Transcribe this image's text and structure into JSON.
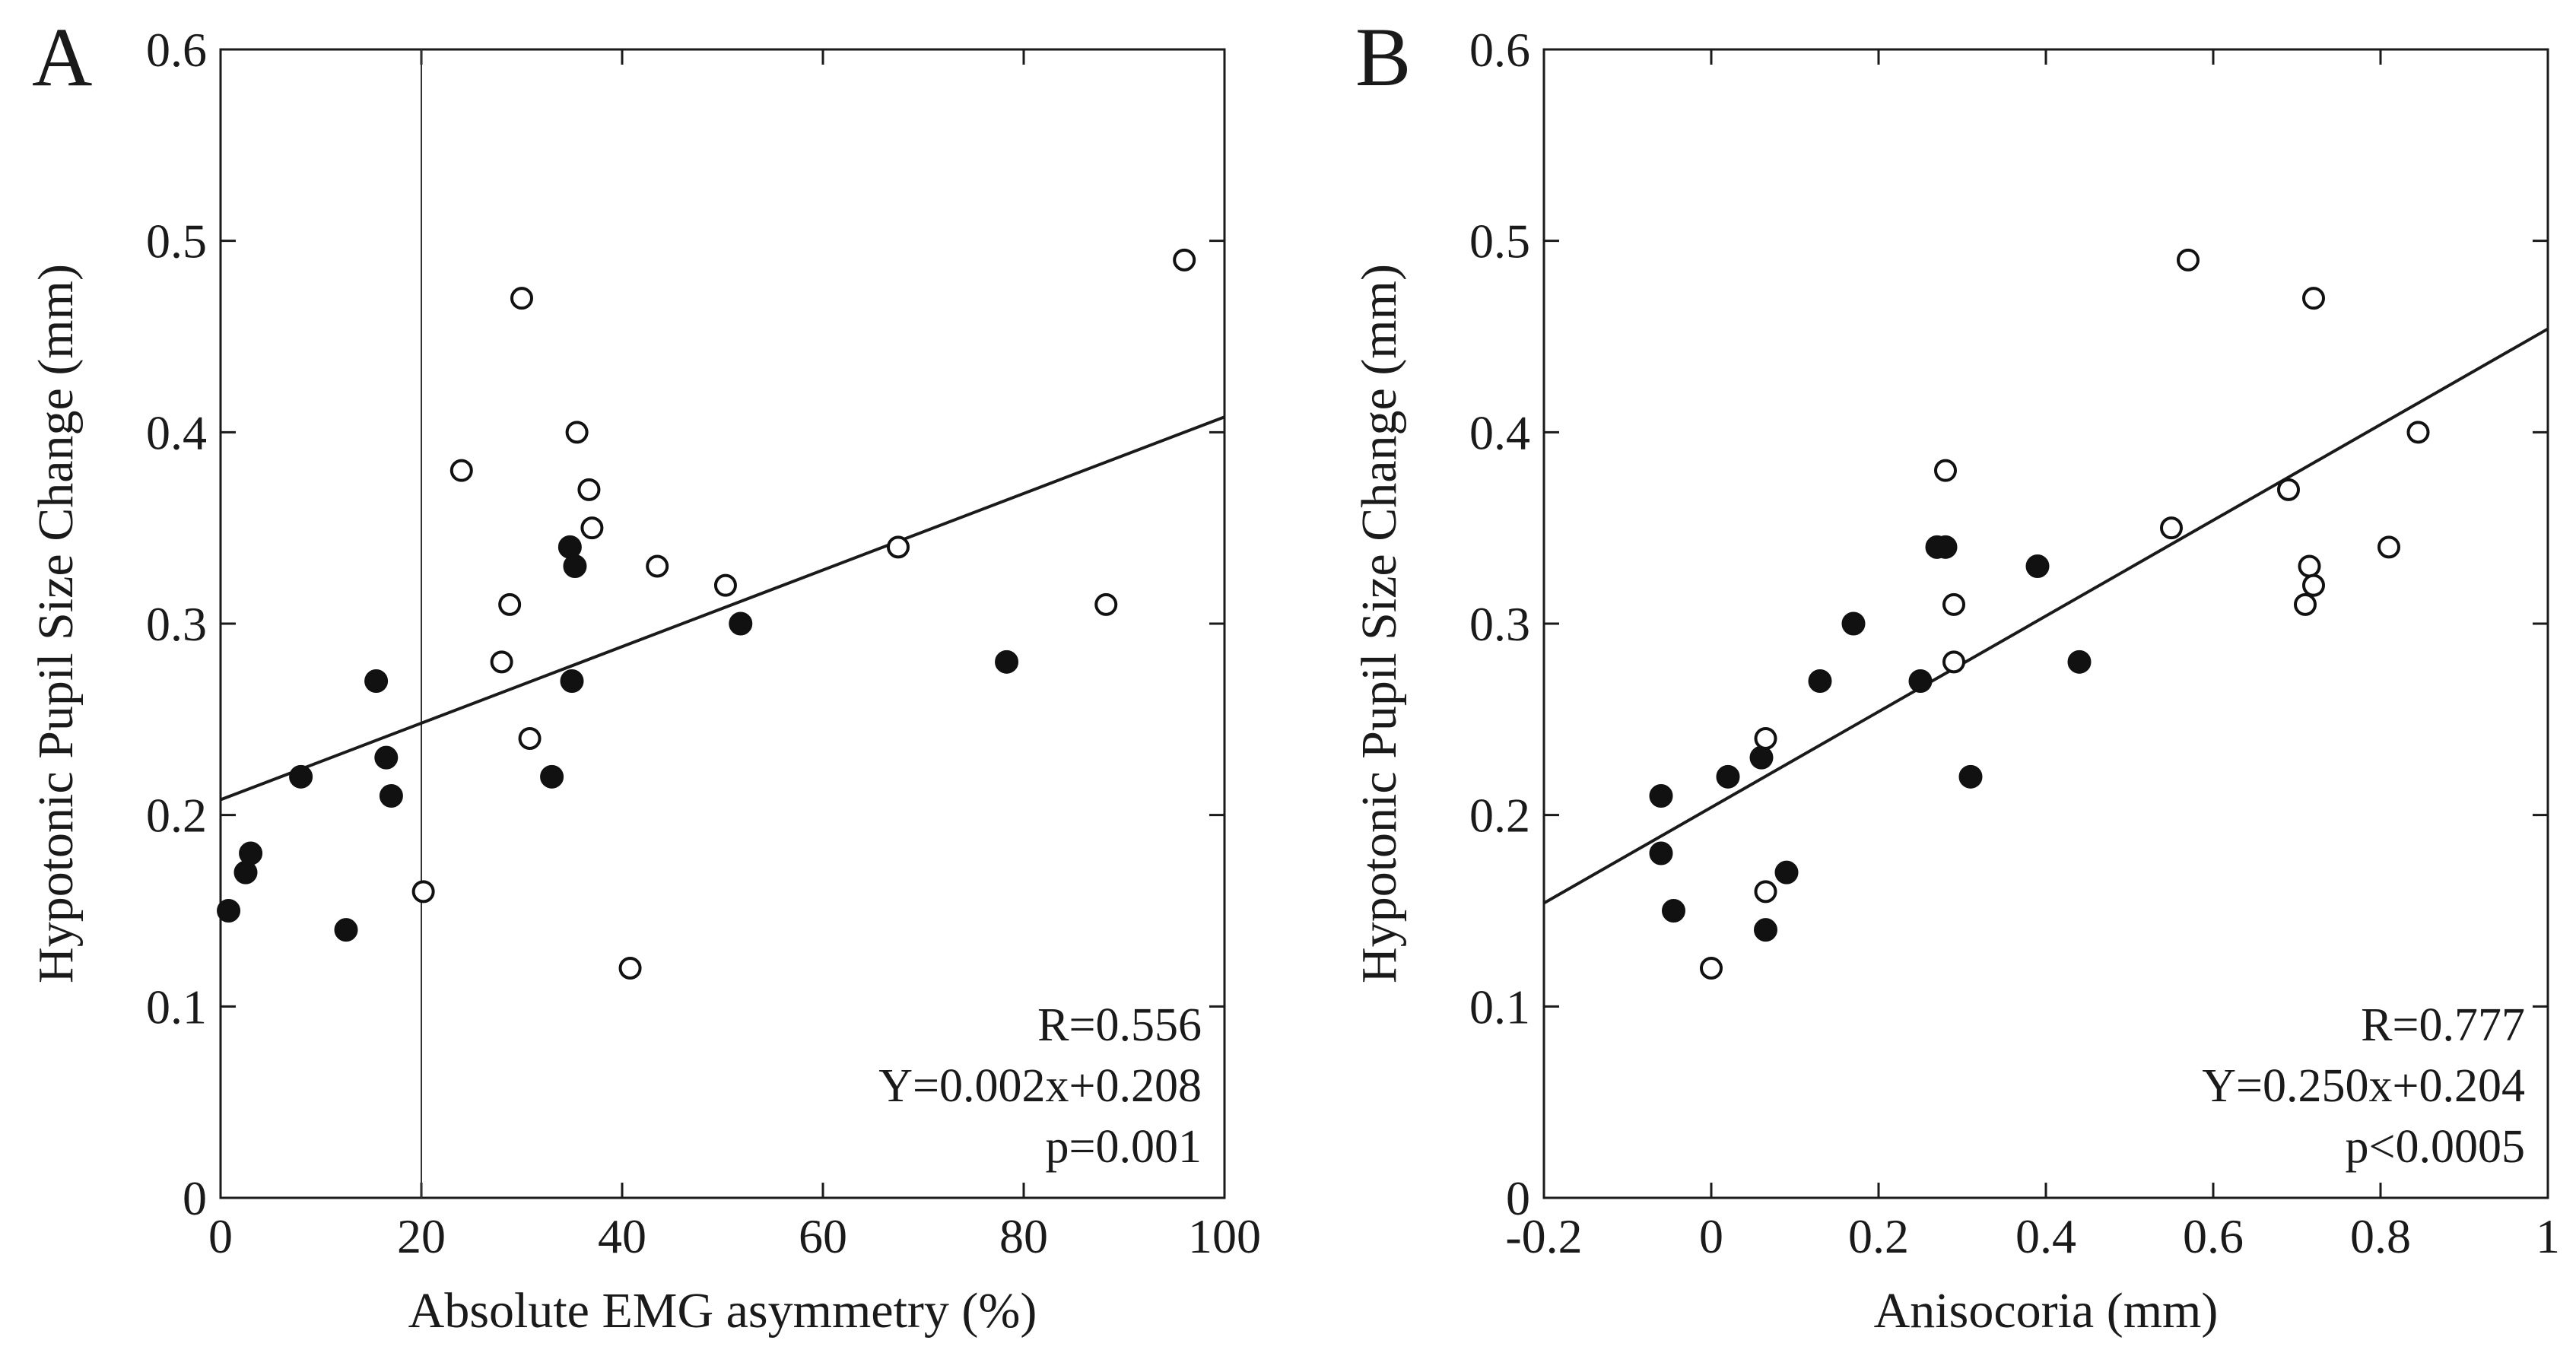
{
  "chart_data": [
    {
      "type": "scatter",
      "panel": "A",
      "xlabel": "Absolute EMG asymmetry (%)",
      "ylabel": "Hypotonic Pupil Size Change (mm)",
      "xlim": [
        0,
        100
      ],
      "ylim": [
        0,
        0.6
      ],
      "xticks": [
        0,
        20,
        40,
        60,
        80,
        100
      ],
      "yticks": [
        0,
        0.1,
        0.2,
        0.3,
        0.4,
        0.5,
        0.6
      ],
      "xtick_labels": [
        "0",
        "20",
        "40",
        "60",
        "80",
        "100"
      ],
      "ytick_labels": [
        "0",
        "0.1",
        "0.2",
        "0.3",
        "0.4",
        "0.5",
        "0.6"
      ],
      "vline_x": 20,
      "fit": {
        "slope": 0.002,
        "intercept": 0.208
      },
      "annotations": [
        "R=0.556",
        "Y=0.002x+0.208",
        "p=0.001"
      ],
      "series": [
        {
          "name": "filled",
          "marker": "filled",
          "points": [
            [
              0.8,
              0.15
            ],
            [
              2.5,
              0.17
            ],
            [
              3,
              0.18
            ],
            [
              8,
              0.22
            ],
            [
              12.5,
              0.14
            ],
            [
              15.5,
              0.27
            ],
            [
              16.5,
              0.23
            ],
            [
              17,
              0.21
            ],
            [
              33,
              0.22
            ],
            [
              34.8,
              0.34
            ],
            [
              35,
              0.27
            ],
            [
              35.3,
              0.33
            ],
            [
              51.8,
              0.3
            ],
            [
              78.3,
              0.28
            ]
          ]
        },
        {
          "name": "open",
          "marker": "open",
          "points": [
            [
              20.2,
              0.16
            ],
            [
              24,
              0.38
            ],
            [
              28,
              0.28
            ],
            [
              28.8,
              0.31
            ],
            [
              30,
              0.47
            ],
            [
              30.8,
              0.24
            ],
            [
              35.5,
              0.4
            ],
            [
              36.7,
              0.37
            ],
            [
              37,
              0.35
            ],
            [
              40.8,
              0.12
            ],
            [
              43.5,
              0.33
            ],
            [
              50.3,
              0.32
            ],
            [
              67.5,
              0.34
            ],
            [
              88.2,
              0.31
            ],
            [
              96,
              0.49
            ]
          ]
        }
      ]
    },
    {
      "type": "scatter",
      "panel": "B",
      "xlabel": "Anisocoria (mm)",
      "ylabel": "Hypotonic Pupil Size Change (mm)",
      "xlim": [
        -0.2,
        1
      ],
      "ylim": [
        0,
        0.6
      ],
      "xticks": [
        -0.2,
        0,
        0.2,
        0.4,
        0.6,
        0.8,
        1
      ],
      "yticks": [
        0,
        0.1,
        0.2,
        0.3,
        0.4,
        0.5,
        0.6
      ],
      "xtick_labels": [
        "-0.2",
        "0",
        "0.2",
        "0.4",
        "0.6",
        "0.8",
        "1"
      ],
      "ytick_labels": [
        "0",
        "0.1",
        "0.2",
        "0.3",
        "0.4",
        "0.5",
        "0.6"
      ],
      "fit": {
        "slope": 0.25,
        "intercept": 0.204
      },
      "annotations": [
        "R=0.777",
        "Y=0.250x+0.204",
        "p<0.0005"
      ],
      "series": [
        {
          "name": "filled",
          "marker": "filled",
          "points": [
            [
              -0.06,
              0.21
            ],
            [
              -0.06,
              0.18
            ],
            [
              -0.045,
              0.15
            ],
            [
              0.02,
              0.22
            ],
            [
              0.06,
              0.23
            ],
            [
              0.065,
              0.14
            ],
            [
              0.09,
              0.17
            ],
            [
              0.13,
              0.27
            ],
            [
              0.17,
              0.3
            ],
            [
              0.25,
              0.27
            ],
            [
              0.27,
              0.34
            ],
            [
              0.28,
              0.34
            ],
            [
              0.31,
              0.22
            ],
            [
              0.39,
              0.33
            ],
            [
              0.44,
              0.28
            ]
          ]
        },
        {
          "name": "open",
          "marker": "open",
          "points": [
            [
              0,
              0.12
            ],
            [
              0.065,
              0.24
            ],
            [
              0.065,
              0.16
            ],
            [
              0.28,
              0.38
            ],
            [
              0.29,
              0.31
            ],
            [
              0.29,
              0.28
            ],
            [
              0.55,
              0.35
            ],
            [
              0.57,
              0.49
            ],
            [
              0.69,
              0.37
            ],
            [
              0.71,
              0.31
            ],
            [
              0.715,
              0.33
            ],
            [
              0.72,
              0.32
            ],
            [
              0.72,
              0.47
            ],
            [
              0.81,
              0.34
            ],
            [
              0.845,
              0.4
            ]
          ]
        }
      ]
    }
  ]
}
